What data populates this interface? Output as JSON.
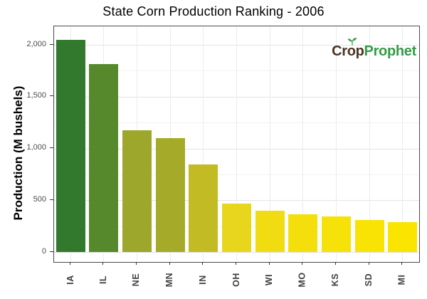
{
  "chart_data": {
    "type": "bar",
    "title": "State Corn Production Ranking - 2006",
    "xlabel": "",
    "ylabel": "Production (M bushels)",
    "categories": [
      "IA",
      "IL",
      "NE",
      "MN",
      "IN",
      "OH",
      "WI",
      "MO",
      "KS",
      "SD",
      "MI"
    ],
    "values": [
      2050,
      1817,
      1178,
      1103,
      845,
      470,
      400,
      361,
      345,
      308,
      288
    ],
    "bar_colors": [
      "#33792d",
      "#55892c",
      "#9ca72b",
      "#a5ab29",
      "#c2bb24",
      "#e8d61d",
      "#f1dc12",
      "#f4df0c",
      "#f6e108",
      "#f8e304",
      "#fae400"
    ],
    "ylim": [
      0,
      2150
    ],
    "yticks": [
      0,
      500,
      1000,
      1500,
      2000
    ],
    "ytick_labels": [
      "0",
      "500",
      "1,000",
      "1,500",
      "2,000"
    ],
    "yticks_minor": [
      250,
      750,
      1250,
      1750
    ],
    "grid": true,
    "legend_position": "none",
    "bar_orientation": "vertical"
  },
  "logo": {
    "crop": "Crop",
    "prophet": "Prophet",
    "crop_color": "#4a3422",
    "prophet_color": "#339b47",
    "sprout_color": "#3a9d49"
  }
}
